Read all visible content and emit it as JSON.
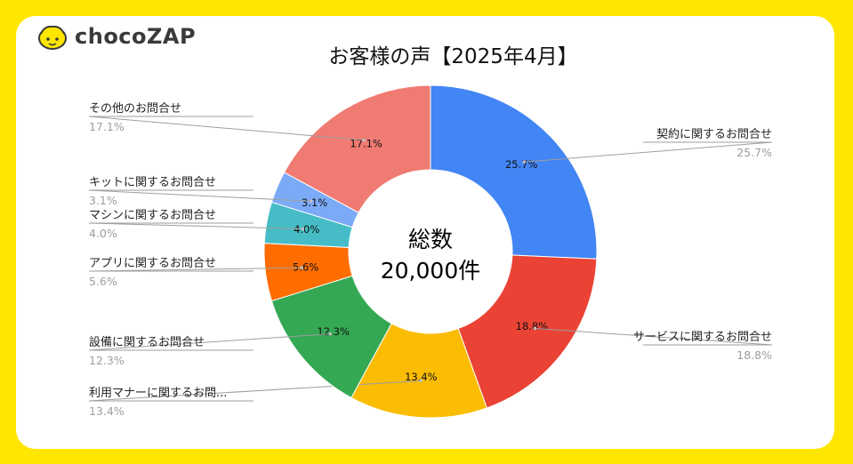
{
  "brand": {
    "name": "chocoZAP"
  },
  "chart_data": {
    "type": "pie",
    "title": "お客様の声【2025年4月】",
    "center_label": {
      "line1": "総数",
      "line2": "20,000件"
    },
    "slices": [
      {
        "label": "契約に関するお問合せ",
        "value": 25.7,
        "display": "25.7%",
        "color": "#4285F4"
      },
      {
        "label": "サービスに関するお問合せ",
        "value": 18.8,
        "display": "18.8%",
        "color": "#EA4335"
      },
      {
        "label": "利用マナーに関するお問...",
        "value": 13.4,
        "display": "13.4%",
        "color": "#FBBC04"
      },
      {
        "label": "設備に関するお問合せ",
        "value": 12.3,
        "display": "12.3%",
        "color": "#34A853"
      },
      {
        "label": "アプリに関するお問合せ",
        "value": 5.6,
        "display": "5.6%",
        "color": "#FF6D01"
      },
      {
        "label": "マシンに関するお問合せ",
        "value": 4.0,
        "display": "4.0%",
        "color": "#46BDC6"
      },
      {
        "label": "キットに関するお問合せ",
        "value": 3.1,
        "display": "3.1%",
        "color": "#7BAAF7"
      },
      {
        "label": "その他のお問合せ",
        "value": 17.1,
        "display": "17.1%",
        "color": "#F07B72"
      }
    ]
  }
}
